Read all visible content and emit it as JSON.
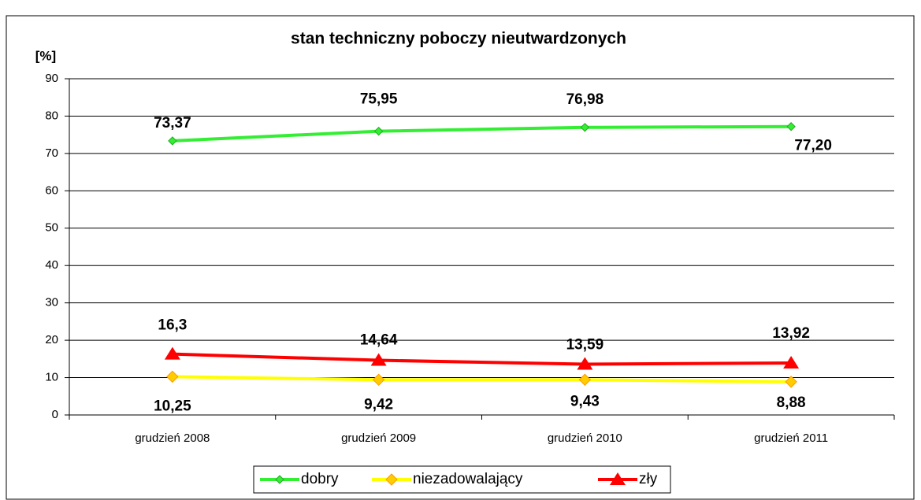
{
  "chart_data": {
    "type": "line",
    "title": "stan techniczny poboczy nieutwardzonych",
    "y_label": "[%]",
    "categories": [
      "grudzień 2008",
      "grudzień 2009",
      "grudzień 2010",
      "grudzień 2011"
    ],
    "series": [
      {
        "name": "dobry",
        "color": "#33ee33",
        "marker": "diamond",
        "values": [
          73.37,
          75.95,
          76.98,
          77.2
        ],
        "value_labels": [
          "73,37",
          "75,95",
          "76,98",
          "77,20"
        ]
      },
      {
        "name": "niezadowalający",
        "color": "#ffff00",
        "marker": "diamond",
        "values": [
          10.25,
          9.42,
          9.43,
          8.88
        ],
        "value_labels": [
          "10,25",
          "9,42",
          "9,43",
          "8,88"
        ]
      },
      {
        "name": "zły",
        "color": "#ff0000",
        "marker": "triangle",
        "values": [
          16.3,
          14.64,
          13.59,
          13.92
        ],
        "value_labels": [
          "16,3",
          "14,64",
          "13,59",
          "13,92"
        ]
      }
    ],
    "ylim": [
      0,
      90
    ],
    "yticks": [
      0,
      10,
      20,
      30,
      40,
      50,
      60,
      70,
      80,
      90
    ],
    "grid": true,
    "legend": "bottom"
  }
}
